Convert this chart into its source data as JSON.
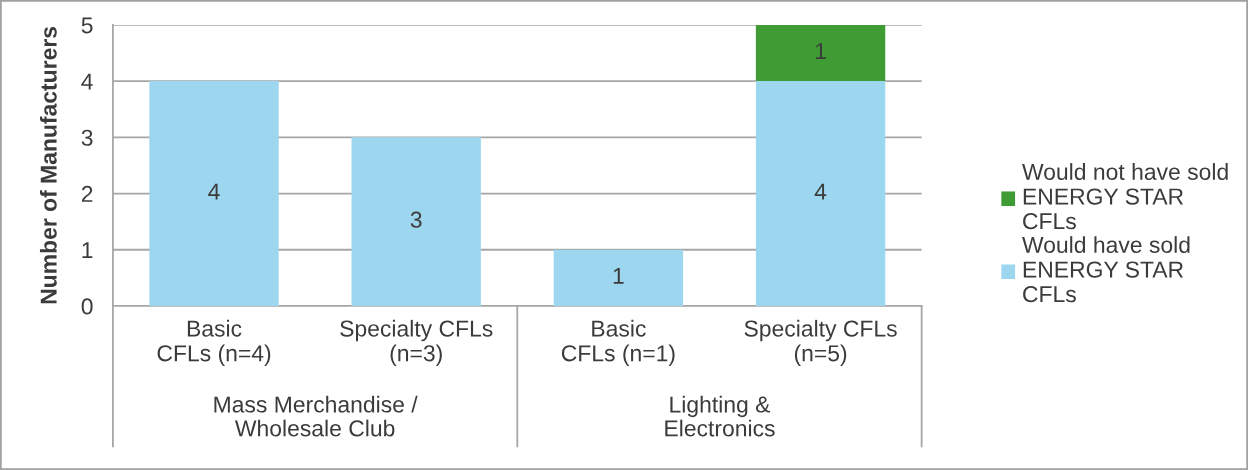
{
  "chart_data": {
    "type": "bar",
    "ylabel": "Number of Manufacturers",
    "categories": [
      "Basic\nCFLs (n=4)",
      "Specialty CFLs\n(n=3)",
      "Basic\nCFLs (n=1)",
      "Specialty CFLs\n(n=5)"
    ],
    "series": [
      {
        "name": "Would have sold\nENERGY STAR\nCFLs",
        "color": "#9dd7ef",
        "values": [
          4,
          3,
          1,
          4
        ]
      },
      {
        "name": "Would not have sold\nENERGY STAR\nCFLs",
        "color": "#3f9c35",
        "values": [
          null,
          null,
          null,
          1
        ]
      }
    ],
    "stacked": true,
    "ylim": [
      0,
      5
    ],
    "yticks": [
      0,
      1,
      2,
      3,
      4,
      5
    ],
    "grid": "y",
    "legend": "right",
    "data_labels": true,
    "annotations": [
      "Mass Merchandise /\nWholesale Club",
      "Lighting &\nElectronics"
    ]
  }
}
